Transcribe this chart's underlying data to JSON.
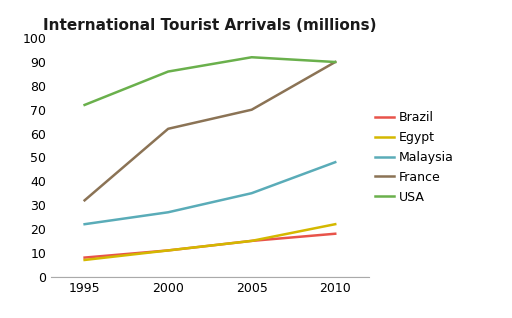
{
  "title": "International Tourist Arrivals (millions)",
  "years": [
    1995,
    2000,
    2005,
    2010
  ],
  "series": [
    {
      "name": "Brazil",
      "color": "#e8534a",
      "values": [
        8,
        11,
        15,
        18
      ],
      "linewidth": 1.8
    },
    {
      "name": "Egypt",
      "color": "#d4b800",
      "values": [
        7,
        11,
        15,
        22
      ],
      "linewidth": 1.8
    },
    {
      "name": "Malaysia",
      "color": "#5aacb8",
      "values": [
        22,
        27,
        35,
        48
      ],
      "linewidth": 1.8
    },
    {
      "name": "France",
      "color": "#8b7355",
      "values": [
        32,
        62,
        70,
        90
      ],
      "linewidth": 1.8
    },
    {
      "name": "USA",
      "color": "#6ab04c",
      "values": [
        72,
        86,
        92,
        90
      ],
      "linewidth": 1.8
    }
  ],
  "ylim": [
    0,
    100
  ],
  "yticks": [
    0,
    10,
    20,
    30,
    40,
    50,
    60,
    70,
    80,
    90,
    100
  ],
  "xlim": [
    1993,
    2012
  ],
  "background_color": "#ffffff",
  "title_fontsize": 11,
  "tick_fontsize": 9,
  "legend_fontsize": 9
}
